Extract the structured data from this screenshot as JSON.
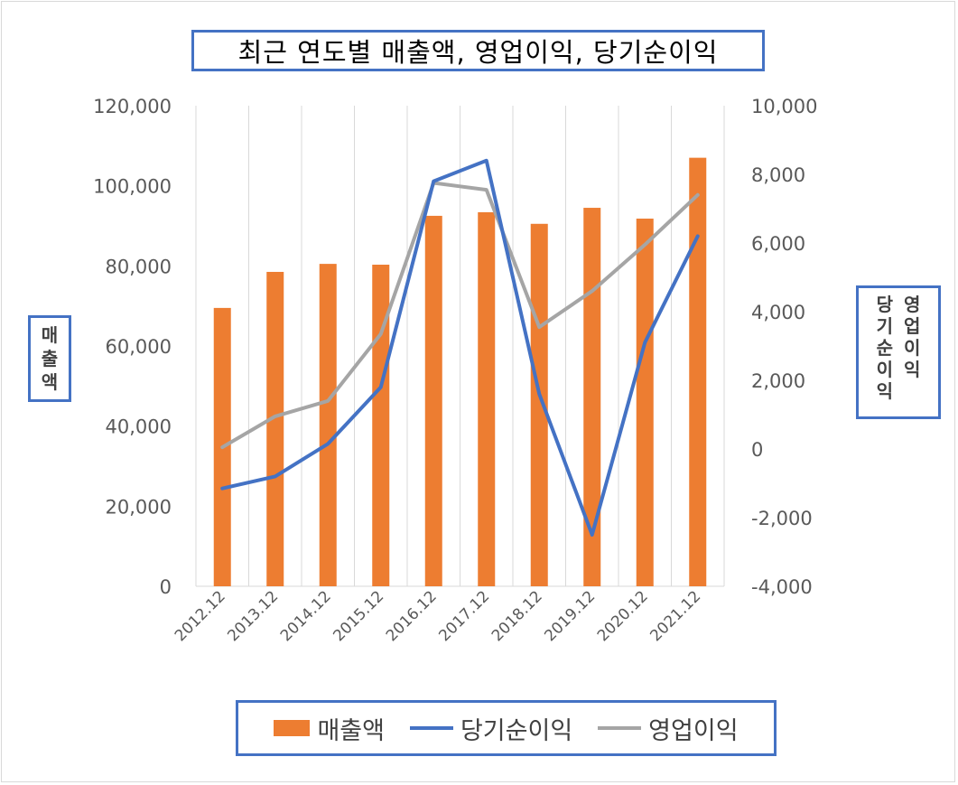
{
  "chart_data": {
    "type": "bar+line",
    "title": "최근 연도별 매출액, 영업이익, 당기순이익",
    "categories": [
      "2012.12",
      "2013.12",
      "2014.12",
      "2015.12",
      "2016.12",
      "2017.12",
      "2018.12",
      "2019.12",
      "2020.12",
      "2021.12"
    ],
    "series": [
      {
        "name": "매출액",
        "type": "bar",
        "axis": "left",
        "color": "#ed7d31",
        "values": [
          69500,
          78500,
          80500,
          80300,
          92500,
          93400,
          90500,
          94500,
          91800,
          107000
        ]
      },
      {
        "name": "당기순이익",
        "type": "line",
        "axis": "right",
        "color": "#4472c4",
        "values": [
          -1150,
          -800,
          150,
          1800,
          7800,
          8400,
          1600,
          -2500,
          3100,
          6200
        ]
      },
      {
        "name": "영업이익",
        "type": "line",
        "axis": "right",
        "color": "#a5a5a5",
        "values": [
          50,
          950,
          1400,
          3350,
          7750,
          7550,
          3550,
          4600,
          5950,
          7400
        ]
      }
    ],
    "ylabel_left": [
      "매",
      "출",
      "액"
    ],
    "ylabel_right_columns": [
      [
        "영",
        "업",
        "이",
        "익"
      ],
      [
        "당",
        "기",
        "순",
        "이",
        "익"
      ]
    ],
    "yleft_ticks": [
      "0",
      "20,000",
      "40,000",
      "60,000",
      "80,000",
      "100,000",
      "120,000"
    ],
    "yright_ticks": [
      "-4,000",
      "-2,000",
      "0",
      "2,000",
      "4,000",
      "6,000",
      "8,000",
      "10,000"
    ],
    "yleft_range": [
      0,
      120000
    ],
    "yright_range": [
      -4000,
      10000
    ],
    "negative_tick_color": "#ff0000",
    "grid": "vertical",
    "legend": "bottom"
  }
}
